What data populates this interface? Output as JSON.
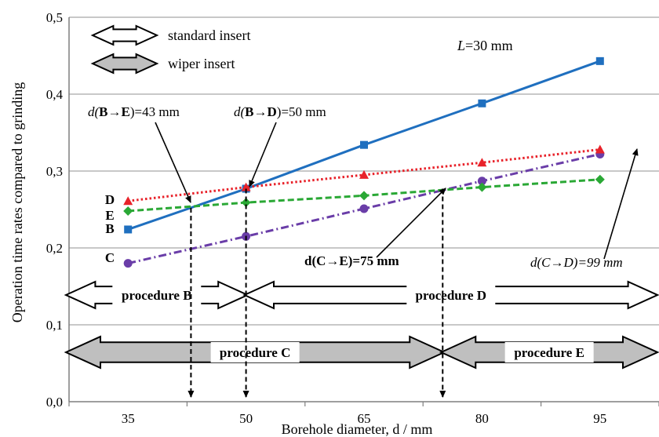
{
  "chart_data": {
    "type": "line",
    "xlabel": "Borehole diameter, d / mm",
    "ylabel": "Operation time rates compared to grinding",
    "x_ticks": [
      "35",
      "50",
      "65",
      "80",
      "95"
    ],
    "y_ticks": [
      "0,0",
      "0,1",
      "0,2",
      "0,3",
      "0,4",
      "0,5"
    ],
    "xlim": [
      27.5,
      102.5
    ],
    "ylim": [
      0,
      0.5
    ],
    "grid": "horizontal",
    "x": [
      35,
      50,
      65,
      80,
      95
    ],
    "series": [
      {
        "name": "B",
        "values": [
          0.224,
          0.277,
          0.334,
          0.388,
          0.443
        ],
        "color": "#1f6fbf",
        "marker": "square",
        "style": "solid"
      },
      {
        "name": "C",
        "values": [
          0.18,
          0.215,
          0.251,
          0.287,
          0.322
        ],
        "color": "#6a3da8",
        "marker": "circle",
        "style": "dashdot"
      },
      {
        "name": "D",
        "values": [
          0.261,
          0.279,
          0.295,
          0.311,
          0.328
        ],
        "color": "#e8222a",
        "marker": "triangle",
        "style": "dotted"
      },
      {
        "name": "E",
        "values": [
          0.248,
          0.259,
          0.268,
          0.279,
          0.289
        ],
        "color": "#2aa835",
        "marker": "diamond",
        "style": "dashed"
      }
    ],
    "legend": [
      {
        "label": "standard insert",
        "kind": "white-arrow"
      },
      {
        "label": "wiper insert",
        "kind": "gray-arrow"
      }
    ],
    "length_note": {
      "prefix": "L",
      "suffix": "=30 mm"
    },
    "intersections": [
      {
        "label_parts": [
          "d(",
          "B",
          "→",
          "E",
          ")=43 mm"
        ],
        "x": 43,
        "y": 0.252,
        "drop": true
      },
      {
        "label_parts": [
          "d(",
          "B",
          "→",
          "D",
          ")=50 mm"
        ],
        "x": 50,
        "y": 0.277,
        "drop": true
      },
      {
        "label_parts": [
          "d(C→E)=75 mm"
        ],
        "x": 75,
        "y": 0.277,
        "drop": true
      },
      {
        "label_parts": [
          "d(C→D)=99 mm"
        ],
        "x": 99,
        "y": 0.33,
        "drop": false
      }
    ],
    "procedures": [
      {
        "label": "procedure B",
        "from": 27.5,
        "to": 50,
        "kind": "white"
      },
      {
        "label": "procedure D",
        "from": 50,
        "to": 102.5,
        "kind": "white"
      },
      {
        "label": "procedure C",
        "from": 27.5,
        "to": 75,
        "kind": "gray"
      },
      {
        "label": "procedure E",
        "from": 75,
        "to": 102.5,
        "kind": "gray"
      }
    ]
  }
}
